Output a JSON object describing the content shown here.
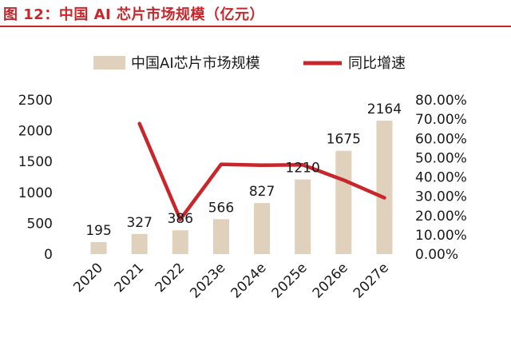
{
  "title": "图 12：中国 AI 芯片市场规模（亿元）",
  "colors": {
    "title": "#c8262b",
    "bar": "#dfd1bb",
    "line": "#c8262b",
    "text": "#1a1a1a"
  },
  "chart_data": {
    "type": "bar",
    "categories": [
      "2020",
      "2021",
      "2022",
      "2023e",
      "2024e",
      "2025e",
      "2026e",
      "2027e"
    ],
    "series": [
      {
        "name": "中国AI芯片市场规模",
        "type": "bar",
        "axis": "left",
        "values": [
          195,
          327,
          386,
          566,
          827,
          1210,
          1675,
          2164
        ]
      },
      {
        "name": "同比增速",
        "type": "line",
        "axis": "right",
        "values": [
          null,
          67.7,
          18.0,
          46.6,
          46.1,
          46.3,
          38.4,
          29.2
        ]
      }
    ],
    "data_labels": [
      "195",
      "327",
      "386",
      "566",
      "827",
      "1210",
      "1675",
      "2164"
    ],
    "y_left": {
      "ylim": [
        0,
        2500
      ],
      "ticks": [
        "0",
        "500",
        "1000",
        "1500",
        "2000",
        "2500"
      ]
    },
    "y_right": {
      "ylim": [
        0,
        80
      ],
      "ticks": [
        "0.00%",
        "10.00%",
        "20.00%",
        "30.00%",
        "40.00%",
        "50.00%",
        "60.00%",
        "70.00%",
        "80.00%"
      ]
    },
    "legend": {
      "position": "top",
      "items": [
        "中国AI芯片市场规模",
        "同比增速"
      ]
    },
    "grid": false
  }
}
